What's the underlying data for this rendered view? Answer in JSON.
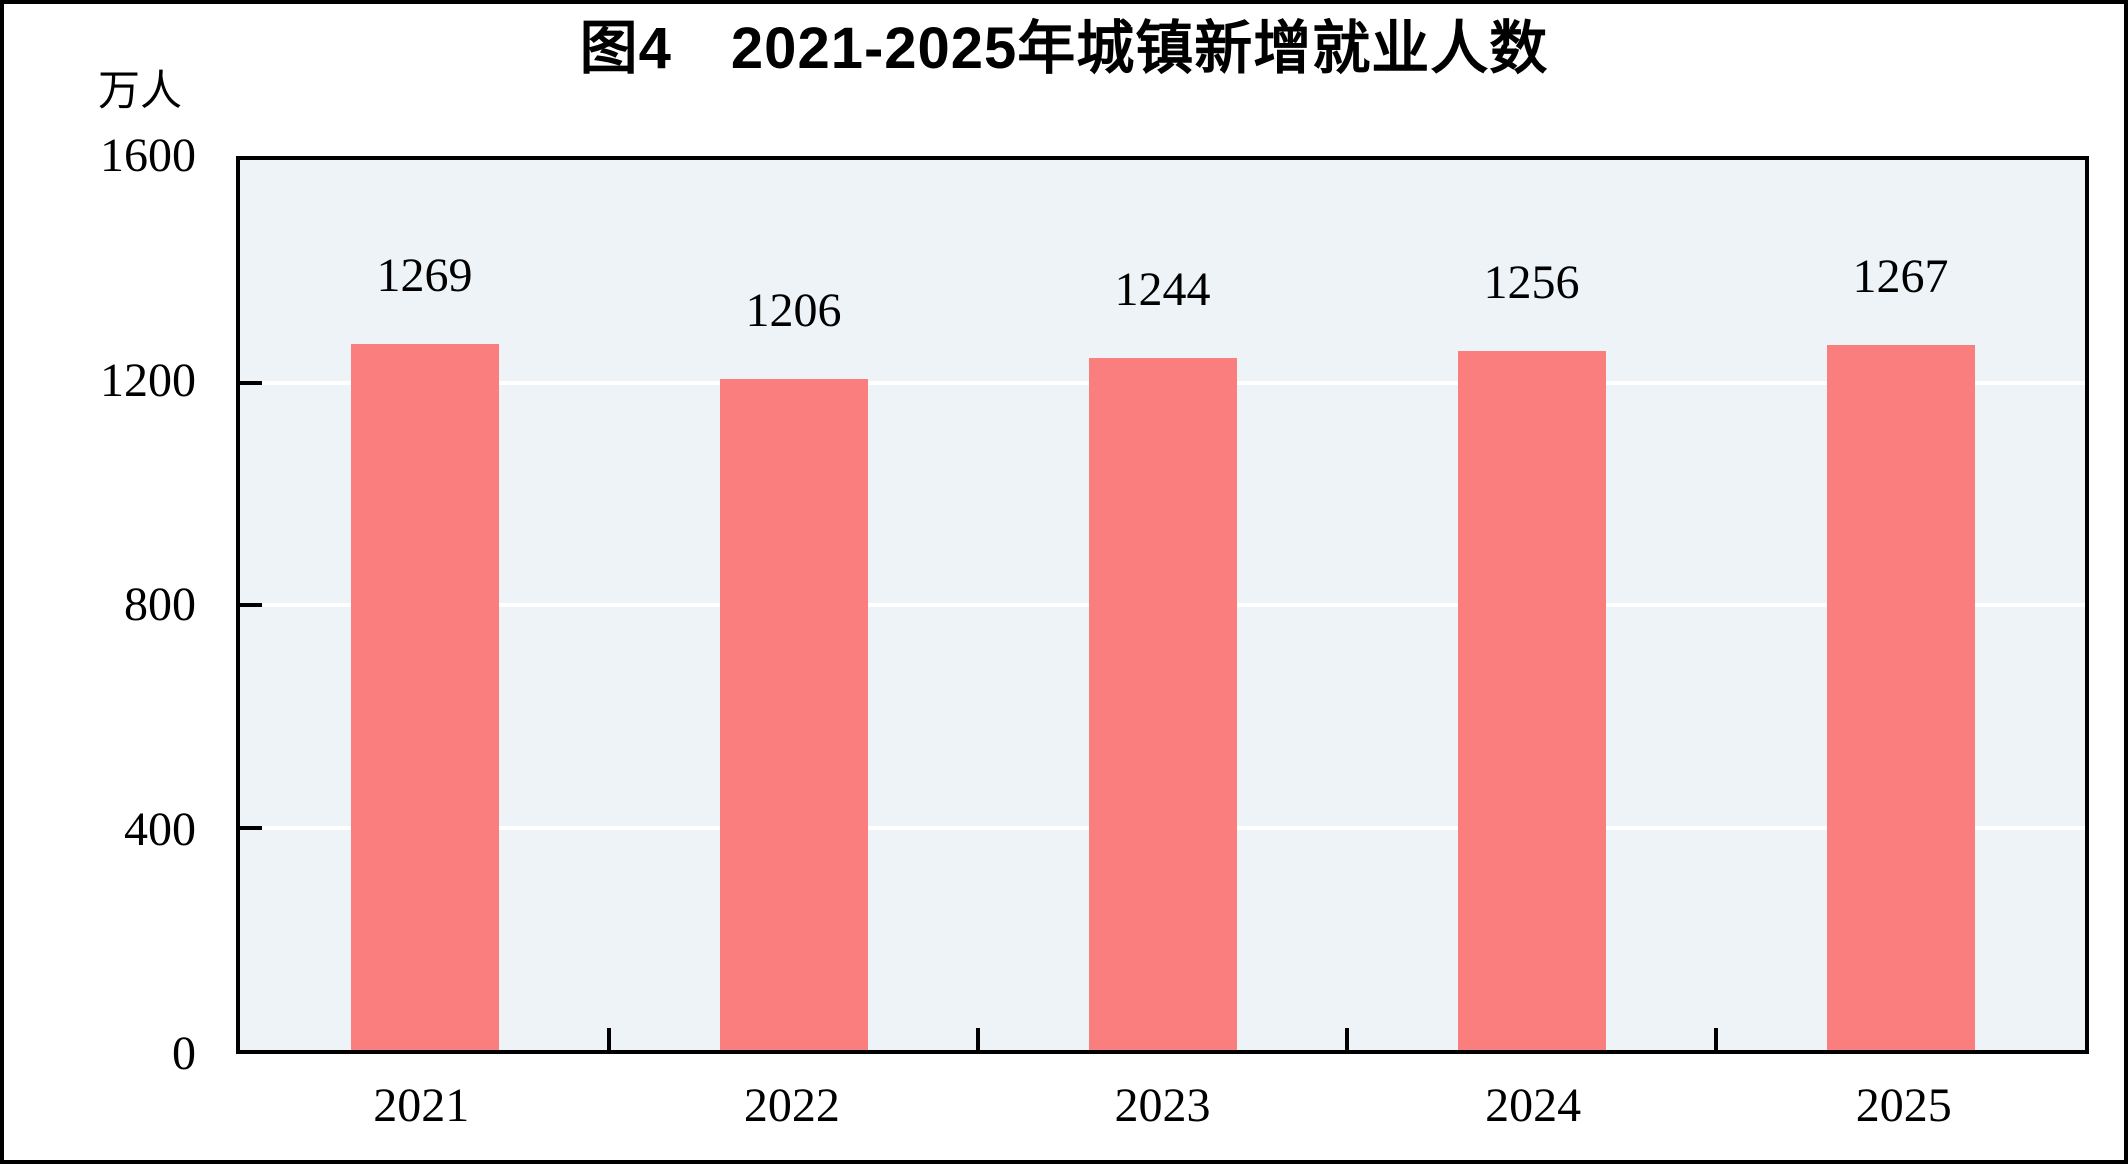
{
  "figure": {
    "title": "图4　2021-2025年城镇新增就业人数",
    "unit_label": "万人"
  },
  "chart_data": {
    "type": "bar",
    "title": "图4　2021-2025年城镇新增就业人数",
    "xlabel": "",
    "ylabel": "万人",
    "categories": [
      "2021",
      "2022",
      "2023",
      "2024",
      "2025"
    ],
    "values": [
      1269,
      1206,
      1244,
      1256,
      1267
    ],
    "data_labels": [
      "1269",
      "1206",
      "1244",
      "1256",
      "1267"
    ],
    "ylim": [
      0,
      1600
    ],
    "ytick_labels": [
      "0",
      "400",
      "800",
      "1200",
      "1600"
    ],
    "ytick_values": [
      0,
      400,
      800,
      1200,
      1600
    ],
    "gridline_values": [
      400,
      800,
      1200
    ],
    "grid": true,
    "legend_position": "none",
    "colors": {
      "bar": "#fb7e7e",
      "plot_background": "#edf3f7",
      "gridline": "#ffffff",
      "axis": "#000000",
      "text": "#000000"
    }
  }
}
